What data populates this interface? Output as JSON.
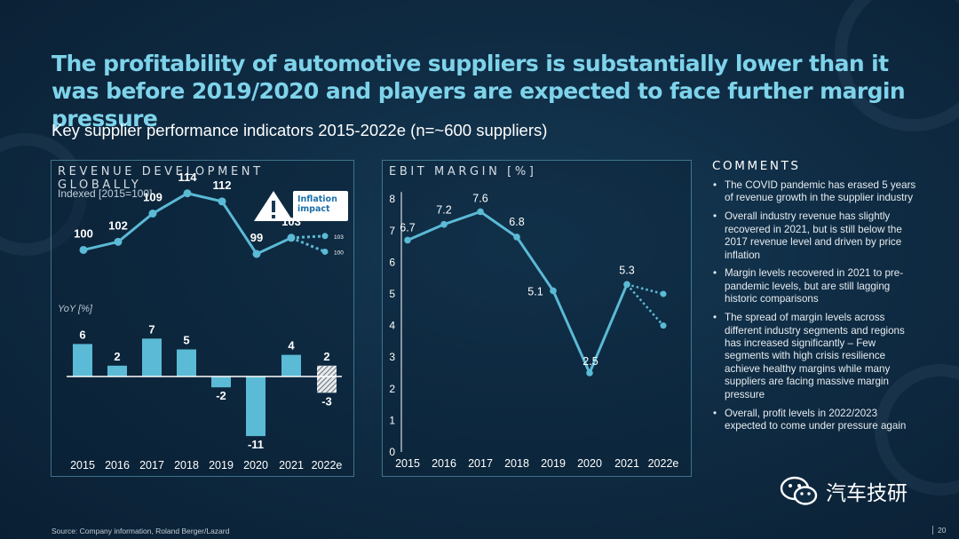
{
  "title": "The profitability of automotive suppliers is substantially lower than it was before 2019/2020 and players are expected to face further margin pressure",
  "subtitle": "Key supplier performance indicators 2015-2022e (n=~600 suppliers)",
  "revenue_panel": {
    "title": "REVENUE DEVELOPMENT GLOBALLY",
    "index_label": "Indexed [2015=100]",
    "yoy_label": "YoY [%]",
    "inflation_label": "Inflation impact"
  },
  "ebit_panel": {
    "title": "EBIT MARGIN [%]"
  },
  "comments": {
    "title": "COMMENTS",
    "items": [
      "The COVID pandemic has erased 5 years of revenue growth in the supplier industry",
      "Overall industry revenue has slightly recovered in 2021, but is still below the 2017 revenue level and driven by price inflation",
      "Margin levels recovered in 2021 to pre-pandemic levels, but are still lagging historic comparisons",
      "The spread of margin levels across different industry segments and regions has increased significantly – Few segments with high crisis resilience achieve healthy margins while many suppliers are facing massive margin pressure",
      "Overall, profit levels in 2022/2023 expected to come under pressure again"
    ]
  },
  "source": "Source: Company information, Roland Berger/Lazard",
  "page_number": "20",
  "watermark": "汽车技研",
  "colors": {
    "accent": "#5bbad5",
    "title": "#7ed3ea",
    "background": "#0f2c44"
  },
  "chart_data": [
    {
      "type": "line",
      "title": "REVENUE DEVELOPMENT GLOBALLY",
      "ylabel": "Indexed [2015=100]",
      "categories": [
        "2015",
        "2016",
        "2017",
        "2018",
        "2019",
        "2020",
        "2021",
        "2022e"
      ],
      "values": [
        100,
        102,
        109,
        114,
        112,
        99,
        103,
        null
      ],
      "labels": [
        "100",
        "102",
        "109",
        "114",
        "112",
        "99",
        "103"
      ],
      "forecast": {
        "x": "2022e",
        "values": [
          103,
          100
        ],
        "labels": [
          "103",
          "100"
        ]
      }
    },
    {
      "type": "bar",
      "title": "YoY [%]",
      "categories": [
        "2015",
        "2016",
        "2017",
        "2018",
        "2019",
        "2020",
        "2021",
        "2022e"
      ],
      "values": [
        6,
        2,
        7,
        5,
        -2,
        -11,
        4,
        2
      ],
      "labels": [
        "6",
        "2",
        "7",
        "5",
        "-2",
        "-11",
        "4",
        "2"
      ],
      "forecast_range": {
        "x": "2022e",
        "high": 2,
        "low": -3,
        "labels": [
          "2",
          "-3"
        ]
      }
    },
    {
      "type": "line",
      "title": "EBIT MARGIN [%]",
      "categories": [
        "2015",
        "2016",
        "2017",
        "2018",
        "2019",
        "2020",
        "2021",
        "2022e"
      ],
      "values": [
        6.7,
        7.2,
        7.6,
        6.8,
        5.1,
        2.5,
        5.3,
        null
      ],
      "labels": [
        "6.7",
        "7.2",
        "7.6",
        "6.8",
        "5.1",
        "2.5",
        "5.3"
      ],
      "forecast": {
        "x": "2022e",
        "values": [
          5.0,
          4.0
        ]
      },
      "yticks": [
        "0",
        "1",
        "2",
        "3",
        "4",
        "5",
        "6",
        "7",
        "8"
      ],
      "ylim": [
        0,
        8
      ]
    }
  ]
}
